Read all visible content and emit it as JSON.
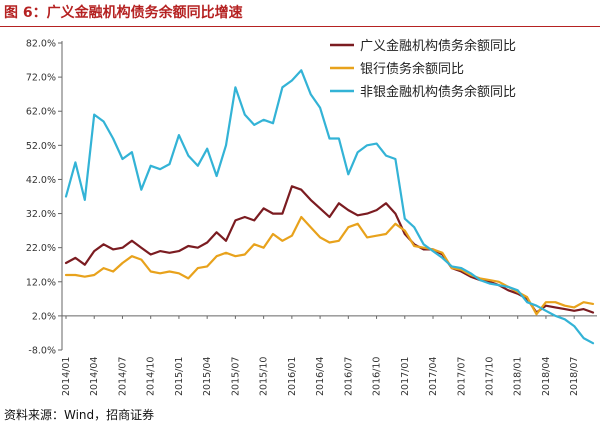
{
  "figure": {
    "title": "图 6：广义金融机构债务余额同比增速",
    "source": "资料来源：Wind，招商证券"
  },
  "chart_data": {
    "type": "line",
    "title": "图 6：广义金融机构债务余额同比增速",
    "xlabel": "",
    "ylabel": "",
    "ylim": [
      -8,
      82
    ],
    "yticks": [
      -8,
      2,
      12,
      22,
      32,
      42,
      52,
      62,
      72,
      82
    ],
    "ytick_labels": [
      "-8.0%",
      "2.0%",
      "12.0%",
      "22.0%",
      "32.0%",
      "42.0%",
      "52.0%",
      "62.0%",
      "72.0%",
      "82.0%"
    ],
    "grid": false,
    "legend_position": "top-right",
    "xtick_labels": [
      "2014/01",
      "2014/04",
      "2014/07",
      "2014/10",
      "2015/01",
      "2015/04",
      "2015/07",
      "2015/10",
      "2016/01",
      "2016/04",
      "2016/07",
      "2016/10",
      "2017/01",
      "2017/04",
      "2017/07",
      "2017/10",
      "2018/01",
      "2018/04",
      "2018/07"
    ],
    "xtick_index": [
      0,
      3,
      6,
      9,
      12,
      15,
      18,
      21,
      24,
      27,
      30,
      33,
      36,
      39,
      42,
      45,
      48,
      51,
      54
    ],
    "x": [
      "2014/01",
      "2014/02",
      "2014/03",
      "2014/04",
      "2014/05",
      "2014/06",
      "2014/07",
      "2014/08",
      "2014/09",
      "2014/10",
      "2014/11",
      "2014/12",
      "2015/01",
      "2015/02",
      "2015/03",
      "2015/04",
      "2015/05",
      "2015/06",
      "2015/07",
      "2015/08",
      "2015/09",
      "2015/10",
      "2015/11",
      "2015/12",
      "2016/01",
      "2016/02",
      "2016/03",
      "2016/04",
      "2016/05",
      "2016/06",
      "2016/07",
      "2016/08",
      "2016/09",
      "2016/10",
      "2016/11",
      "2016/12",
      "2017/01",
      "2017/02",
      "2017/03",
      "2017/04",
      "2017/05",
      "2017/06",
      "2017/07",
      "2017/08",
      "2017/09",
      "2017/10",
      "2017/11",
      "2017/12",
      "2018/01",
      "2018/02",
      "2018/03",
      "2018/04",
      "2018/05",
      "2018/06",
      "2018/07",
      "2018/08",
      "2018/09"
    ],
    "series": [
      {
        "name": "广义金融机构债务余额同比",
        "color": "#7b1c21",
        "values": [
          17.5,
          19,
          17,
          21,
          23,
          21.5,
          22,
          24,
          22,
          20,
          21,
          20.5,
          21,
          22.5,
          22,
          23.5,
          26.5,
          24,
          30,
          31,
          30,
          33.5,
          32,
          32,
          40,
          39,
          36,
          33.5,
          31,
          35,
          33,
          31.5,
          32,
          33,
          35,
          32,
          26,
          23,
          21.5,
          21.5,
          20,
          16,
          15,
          13.5,
          12.5,
          12,
          11,
          9.5,
          8.5,
          7,
          3,
          5,
          4.5,
          4,
          3.5,
          4,
          3
        ]
      },
      {
        "name": "银行债务余额同比",
        "color": "#e8a21c",
        "values": [
          14,
          14,
          13.5,
          14,
          16,
          15,
          17.5,
          19.5,
          18.5,
          15,
          14.5,
          15,
          14.5,
          13,
          16,
          16.5,
          19.5,
          20.5,
          19.5,
          20,
          23,
          22,
          26,
          24,
          25.5,
          31,
          28,
          25,
          23.5,
          24,
          28,
          29,
          25,
          25.5,
          26,
          29,
          27,
          22.5,
          22,
          21.5,
          20.5,
          16,
          15.5,
          14,
          13,
          12.5,
          12,
          10.5,
          9,
          7.5,
          2.5,
          6,
          6,
          5,
          4.5,
          6,
          5.5
        ]
      },
      {
        "name": "非银金融机构债务余额同比",
        "color": "#33b3d6",
        "values": [
          37,
          47,
          36,
          61,
          59,
          54,
          48,
          50,
          39,
          46,
          45,
          46.5,
          55,
          49,
          46,
          51,
          43,
          52,
          69,
          61,
          58,
          59.5,
          58.5,
          69,
          71,
          74,
          67,
          63,
          54,
          54,
          43.5,
          50,
          52,
          52.5,
          49,
          48,
          30.5,
          28,
          23,
          21,
          19,
          16.5,
          16,
          14.5,
          12.5,
          11.5,
          11,
          10.5,
          9.5,
          6,
          5,
          3.5,
          2,
          1,
          -1,
          -4.5,
          -6
        ]
      }
    ]
  }
}
